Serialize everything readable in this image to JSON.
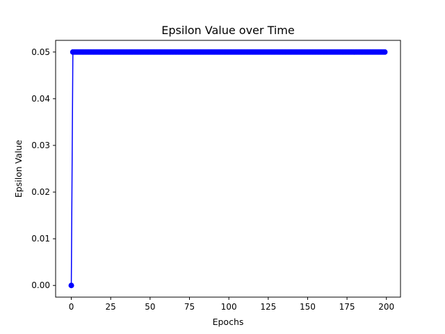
{
  "chart_data": {
    "type": "line",
    "title": "Epsilon Value over Time",
    "xlabel": "Epochs",
    "ylabel": "Epsilon Value",
    "xlim": [
      -9.95,
      208.95
    ],
    "ylim": [
      -0.0025,
      0.0525
    ],
    "x_ticks": [
      0,
      25,
      50,
      75,
      100,
      125,
      150,
      175,
      200
    ],
    "y_ticks": [
      0.0,
      0.01,
      0.02,
      0.03,
      0.04,
      0.05
    ],
    "y_tick_labels": [
      "0.00",
      "0.01",
      "0.02",
      "0.03",
      "0.04",
      "0.05"
    ],
    "grid": false,
    "series": [
      {
        "color": "#0000ff",
        "marker": "circle",
        "x_start": 0,
        "x_end": 199,
        "initial_value": 0.0,
        "constant_value": 0.05
      }
    ]
  }
}
